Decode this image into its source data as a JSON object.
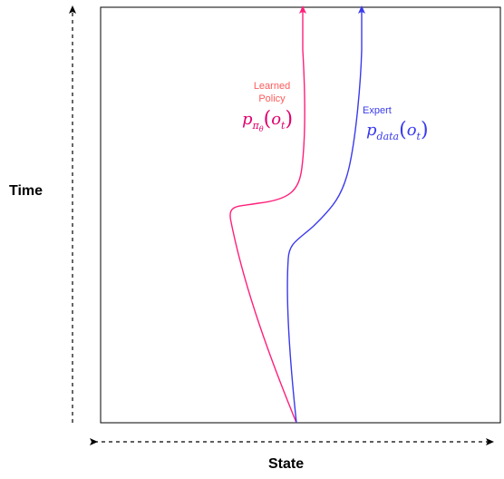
{
  "axes": {
    "time_label": "Time",
    "state_label": "State"
  },
  "learned": {
    "label_line1": "Learned",
    "label_line2": "Policy",
    "math_base": "p",
    "math_sub": "π",
    "math_subsub": "θ",
    "math_arg_o": "o",
    "math_arg_t": "t",
    "color": "#ff1f7a"
  },
  "expert": {
    "label": "Expert",
    "math_base": "p",
    "math_sub": "data",
    "math_arg_o": "o",
    "math_arg_t": "t",
    "color": "#3a3aee"
  },
  "frame_color": "#000000"
}
